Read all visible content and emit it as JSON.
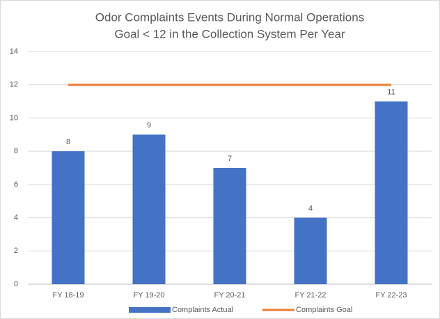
{
  "chart_data": {
    "type": "bar",
    "title": "Odor Complaints Events During Normal Operations",
    "subtitle": "Goal < 12 in the Collection System Per Year",
    "categories": [
      "FY 18-19",
      "FY 19-20",
      "FY 20-21",
      "FY 21-22",
      "FY 22-23"
    ],
    "series": [
      {
        "name": "Complaints Actual",
        "type": "bar",
        "color": "#4472c4",
        "values": [
          8,
          9,
          7,
          4,
          11
        ],
        "data_labels": true
      },
      {
        "name": "Complaints Goal",
        "type": "line",
        "color": "#ed7d31",
        "values": [
          12,
          12,
          12,
          12,
          12
        ]
      }
    ],
    "ylim": [
      0,
      14
    ],
    "yticks": [
      0,
      2,
      4,
      6,
      8,
      10,
      12,
      14
    ],
    "grid": true,
    "legend": "bottom"
  }
}
